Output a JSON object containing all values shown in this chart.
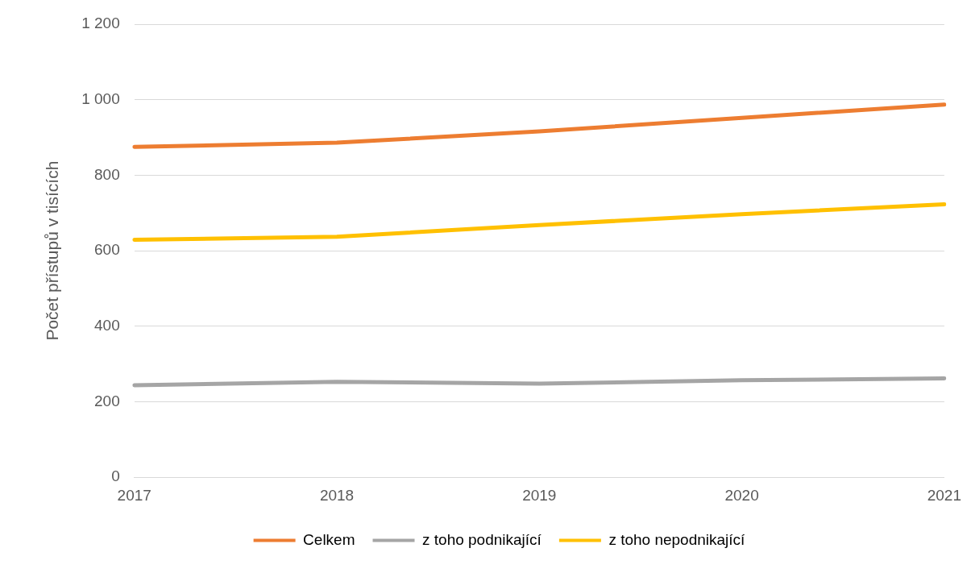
{
  "chart_data": {
    "type": "line",
    "ylabel": "Počet přístupů v tisících",
    "categories": [
      "2017",
      "2018",
      "2019",
      "2020",
      "2021"
    ],
    "series": [
      {
        "name": "Celkem",
        "color": "#ed7d31",
        "values": [
          875,
          886,
          916,
          952,
          987
        ]
      },
      {
        "name": "z toho podnikající",
        "color": "#a5a5a5",
        "values": [
          244,
          253,
          248,
          257,
          262
        ]
      },
      {
        "name": "z toho nepodnikající",
        "color": "#ffc000",
        "values": [
          629,
          637,
          668,
          697,
          723
        ]
      }
    ],
    "ylim": [
      0,
      1200
    ],
    "yticks": [
      0,
      200,
      400,
      600,
      800,
      {
        "value": 1000,
        "label": "1 000"
      },
      {
        "value": 1200,
        "label": "1 200"
      }
    ],
    "grid": "y",
    "legend": "bottom",
    "marker": "none",
    "line_style": "solid"
  }
}
